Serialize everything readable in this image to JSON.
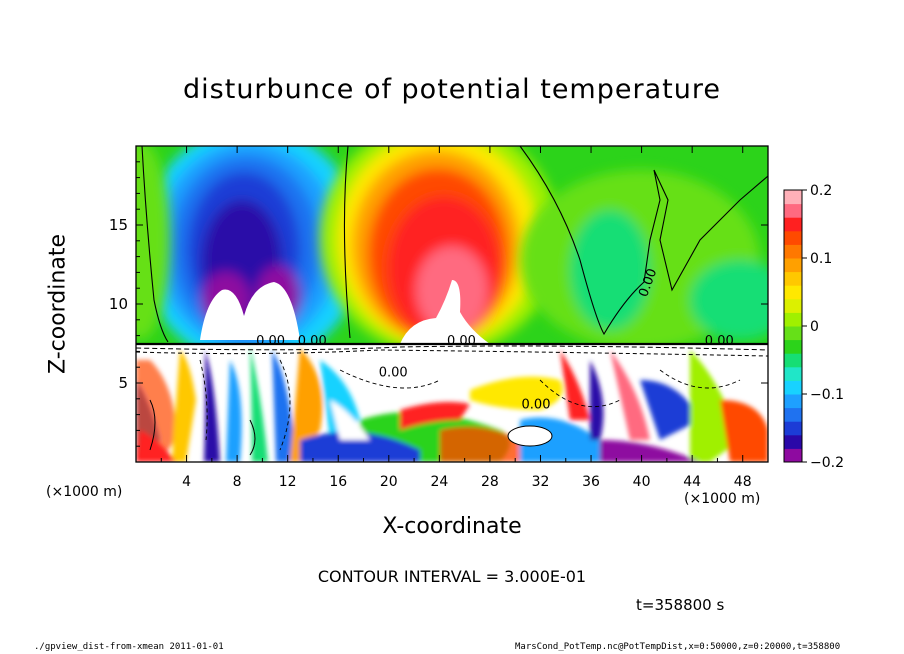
{
  "chart_data": {
    "type": "heatmap",
    "title": "disturbunce of potential temperature",
    "xlabel": "X-coordinate",
    "ylabel": "Z-coordinate",
    "x_unit": "(×1000 m)",
    "x_unit_right": "(×1000 m)",
    "xlim": [
      0,
      50
    ],
    "ylim": [
      0,
      20
    ],
    "xticks": [
      4,
      8,
      12,
      16,
      20,
      24,
      28,
      32,
      36,
      40,
      44,
      48
    ],
    "yticks": [
      5,
      10,
      15
    ],
    "colorbar": {
      "range": [
        -0.2,
        0.2
      ],
      "tick_labels": [
        "0.2",
        "0.1",
        "0",
        "−0.1",
        "−0.2"
      ],
      "tick_values": [
        0.2,
        0.1,
        0,
        -0.1,
        -0.2
      ],
      "colors": [
        "#8e0aa0",
        "#2a08a8",
        "#1c3cd6",
        "#1f72f0",
        "#1ea0ff",
        "#18d2ff",
        "#20e6c8",
        "#16de74",
        "#2cd31a",
        "#66e018",
        "#a0f000",
        "#dcf000",
        "#ffe800",
        "#ffc800",
        "#ffa000",
        "#ff7800",
        "#ff4a00",
        "#ff2020",
        "#ff6a80",
        "#ffb0b8"
      ]
    },
    "regions": [
      {
        "x": 8.5,
        "z": 14.5,
        "value": -0.18
      },
      {
        "x": 25,
        "z": 11.5,
        "value": 0.18
      },
      {
        "x": 9.5,
        "z": 7.5,
        "value": -0.2
      },
      {
        "x": 24,
        "z": 7.5,
        "value": 0.2
      },
      {
        "x": 42,
        "z": 12,
        "value": 0.0
      }
    ],
    "contour_labels": [
      "0.00",
      "0.00",
      "0.00",
      "0.00",
      "0.00",
      "0.00",
      "0.00"
    ],
    "contour_interval_text": "CONTOUR INTERVAL = 3.000E-01",
    "time_text": "t=358800 s"
  },
  "footer": {
    "left": "./gpview_dist-from-xmean  2011-01-01",
    "right": "MarsCond_PotTemp.nc@PotTempDist,x=0:50000,z=0:20000,t=358800"
  }
}
